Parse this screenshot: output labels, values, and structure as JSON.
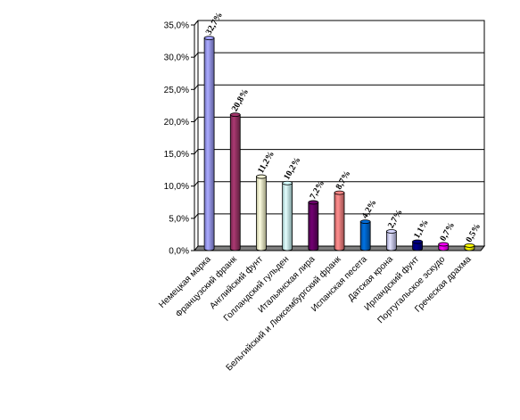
{
  "chart_data": {
    "type": "bar",
    "title": "",
    "xlabel": "",
    "ylabel": "",
    "ylim": [
      0,
      35
    ],
    "y_ticks": [
      "0,0%",
      "5,0%",
      "10,0%",
      "15,0%",
      "20,0%",
      "25,0%",
      "30,0%",
      "35,0%"
    ],
    "grid": true,
    "bar_style": "cylinder-3d",
    "categories": [
      "Немецкая марка",
      "Французский франк",
      "Английский фунт",
      "Голландский гульден",
      "Итальянская лира",
      "Бельгийский и Люксембургский франк",
      "Испанская песета",
      "Датская крона",
      "Ирландский фунт",
      "Португальское эскудо",
      "Греческая драхма"
    ],
    "values": [
      32.7,
      20.8,
      11.2,
      10.2,
      7.2,
      8.7,
      4.2,
      2.7,
      1.1,
      0.7,
      0.5
    ],
    "data_labels": [
      "32,7%",
      "20,8%",
      "11,2%",
      "10,2%",
      "7,2%",
      "8,7%",
      "4,2%",
      "2,7%",
      "1,1%",
      "0,7%",
      "0,5%"
    ],
    "colors": [
      "#9999FF",
      "#993366",
      "#FFFFCC",
      "#CCFFFF",
      "#660066",
      "#FF8080",
      "#0066CC",
      "#CCCCFF",
      "#000080",
      "#FF00FF",
      "#FFFF00"
    ],
    "plot_background": "#ffffff",
    "floor_color": "#808080"
  }
}
